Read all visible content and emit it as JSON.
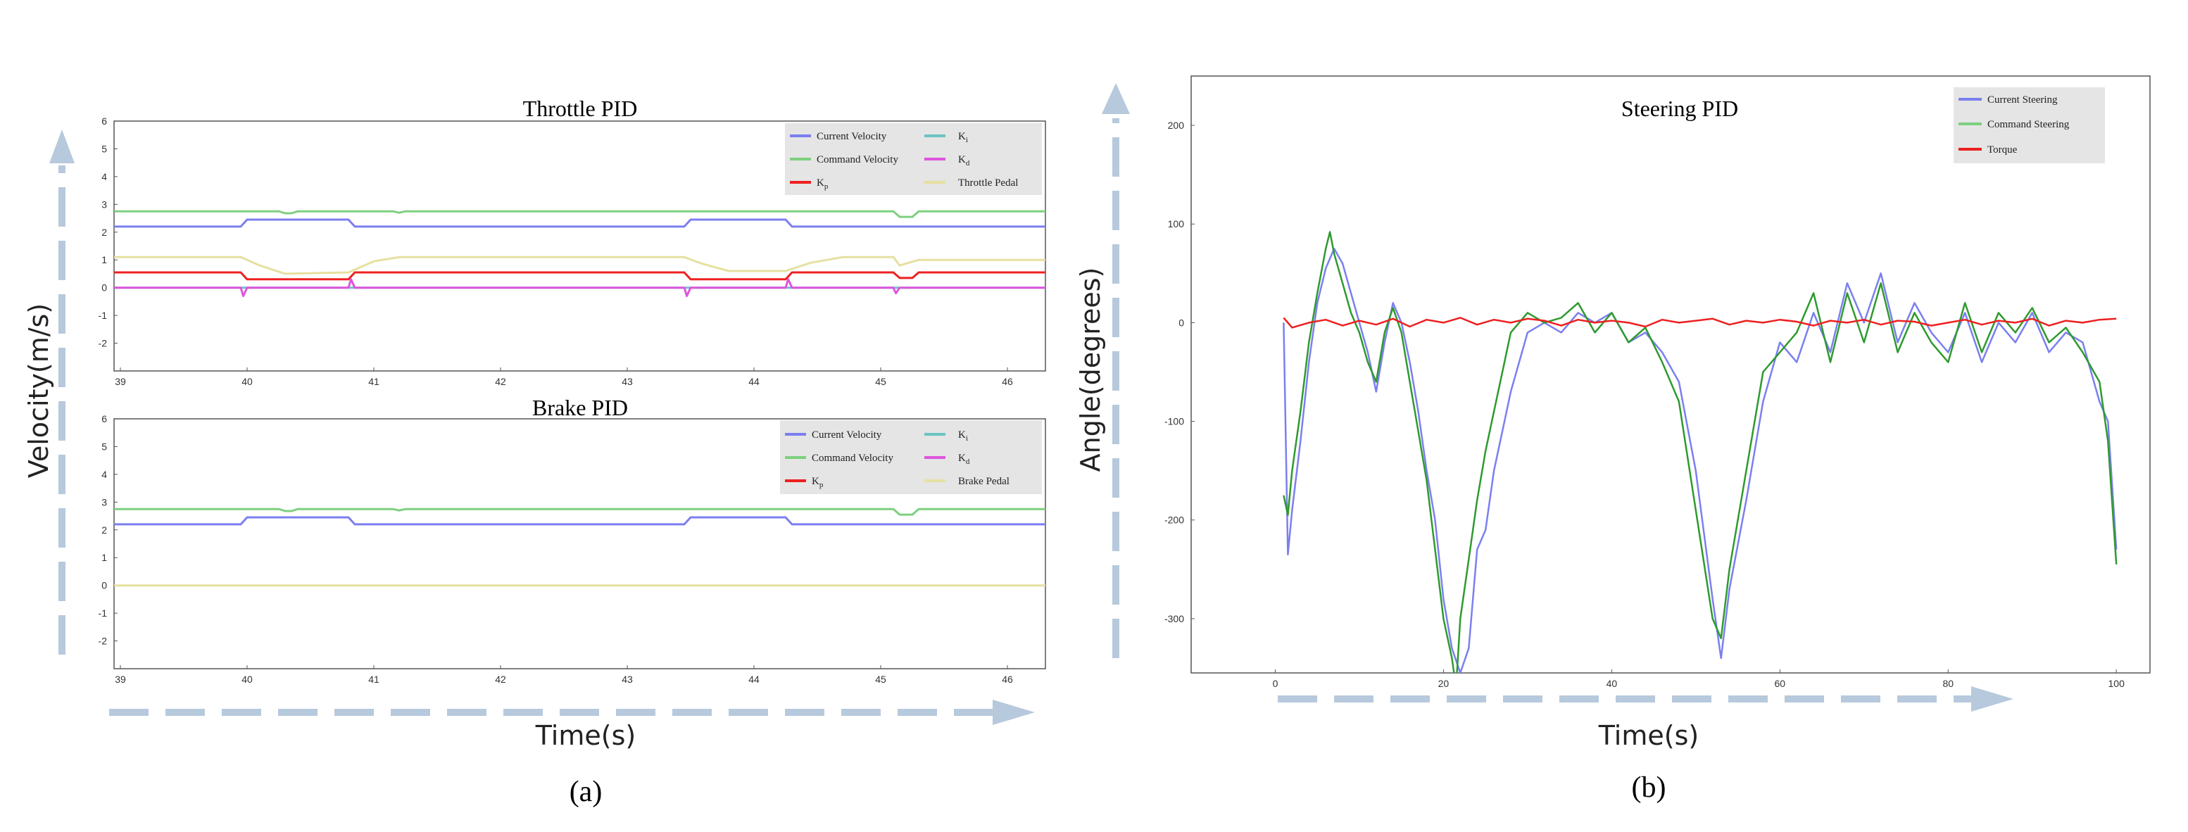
{
  "colors": {
    "current": "#7b7ff0",
    "command": "#7ed07e",
    "command_dark": "#2e9a2e",
    "kp": "#ee2020",
    "ki": "#6cc3c3",
    "kd": "#dd55dd",
    "pedal": "#e6e0a0",
    "arrow": "#b7c9dc"
  },
  "figure": {
    "panel_a": {
      "axis_label_y": "Velocity(m/s)",
      "axis_label_x": "Time(s)",
      "caption": "(a)"
    },
    "panel_b": {
      "axis_label_y": "Angle(degrees)",
      "axis_label_x": "Time(s)",
      "caption": "(b)"
    }
  },
  "chart_data": [
    {
      "id": "throttle",
      "type": "line",
      "title": "Throttle PID",
      "xlim": [
        38.95,
        46.3
      ],
      "ylim": [
        -3,
        6
      ],
      "xticks": [
        39,
        40,
        41,
        42,
        43,
        44,
        45,
        46
      ],
      "yticks": [
        -2,
        -1,
        0,
        1,
        2,
        3,
        4,
        5,
        6
      ],
      "legend": [
        "Current Velocity",
        "Command Velocity",
        "K_p",
        "K_i",
        "K_d",
        "Throttle Pedal"
      ],
      "series": [
        {
          "name": "Current Velocity",
          "color_key": "current",
          "x": [
            38.95,
            39.95,
            40.0,
            40.8,
            40.85,
            43.45,
            43.5,
            44.25,
            44.3,
            46.3
          ],
          "y": [
            2.2,
            2.2,
            2.45,
            2.45,
            2.2,
            2.2,
            2.45,
            2.45,
            2.2,
            2.2
          ]
        },
        {
          "name": "Command Velocity",
          "color_key": "command",
          "x": [
            38.95,
            40.25,
            40.3,
            40.35,
            40.4,
            41.15,
            41.2,
            41.25,
            45.1,
            45.15,
            45.25,
            45.3,
            46.3
          ],
          "y": [
            2.75,
            2.75,
            2.68,
            2.68,
            2.75,
            2.75,
            2.7,
            2.75,
            2.75,
            2.55,
            2.55,
            2.75,
            2.75
          ]
        },
        {
          "name": "K_p",
          "color_key": "kp",
          "x": [
            38.95,
            39.95,
            40.0,
            40.8,
            40.85,
            43.45,
            43.5,
            44.25,
            44.3,
            45.1,
            45.15,
            45.25,
            45.3,
            46.3
          ],
          "y": [
            0.55,
            0.55,
            0.3,
            0.3,
            0.55,
            0.55,
            0.3,
            0.3,
            0.55,
            0.55,
            0.35,
            0.35,
            0.55,
            0.55
          ]
        },
        {
          "name": "K_i",
          "color_key": "ki",
          "x": [
            38.95,
            46.3
          ],
          "y": [
            0.0,
            0.0
          ]
        },
        {
          "name": "K_d",
          "color_key": "kd",
          "x": [
            38.95,
            39.95,
            39.97,
            40.0,
            40.8,
            40.82,
            40.85,
            43.45,
            43.47,
            43.5,
            44.25,
            44.27,
            44.3,
            45.1,
            45.12,
            45.15,
            46.3
          ],
          "y": [
            0.0,
            0.0,
            -0.3,
            0.0,
            0.0,
            0.3,
            0.0,
            0.0,
            -0.3,
            0.0,
            0.0,
            0.3,
            0.0,
            0.0,
            -0.2,
            0.0,
            0.0
          ]
        },
        {
          "name": "Throttle Pedal",
          "color_key": "pedal",
          "x": [
            38.95,
            39.95,
            40.1,
            40.3,
            40.8,
            41.0,
            41.2,
            43.45,
            43.6,
            43.8,
            44.25,
            44.45,
            44.7,
            45.1,
            45.15,
            45.3,
            46.3
          ],
          "y": [
            1.1,
            1.1,
            0.8,
            0.5,
            0.55,
            0.95,
            1.1,
            1.1,
            0.85,
            0.6,
            0.6,
            0.9,
            1.1,
            1.1,
            0.8,
            1.0,
            1.0
          ]
        }
      ]
    },
    {
      "id": "brake",
      "type": "line",
      "title": "Brake PID",
      "xlim": [
        38.95,
        46.3
      ],
      "ylim": [
        -3,
        6
      ],
      "xticks": [
        39,
        40,
        41,
        42,
        43,
        44,
        45,
        46
      ],
      "yticks": [
        -2,
        -1,
        0,
        1,
        2,
        3,
        4,
        5,
        6
      ],
      "legend": [
        "Current Velocity",
        "Command Velocity",
        "K_p",
        "K_i",
        "K_d",
        "Brake Pedal"
      ],
      "series": [
        {
          "name": "Current Velocity",
          "color_key": "current",
          "x": [
            38.95,
            39.95,
            40.0,
            40.8,
            40.85,
            43.45,
            43.5,
            44.25,
            44.3,
            46.3
          ],
          "y": [
            2.2,
            2.2,
            2.45,
            2.45,
            2.2,
            2.2,
            2.45,
            2.45,
            2.2,
            2.2
          ]
        },
        {
          "name": "Command Velocity",
          "color_key": "command",
          "x": [
            38.95,
            40.25,
            40.3,
            40.35,
            40.4,
            41.15,
            41.2,
            41.25,
            45.1,
            45.15,
            45.25,
            45.3,
            46.3
          ],
          "y": [
            2.75,
            2.75,
            2.68,
            2.68,
            2.75,
            2.75,
            2.7,
            2.75,
            2.75,
            2.55,
            2.55,
            2.75,
            2.75
          ]
        },
        {
          "name": "Brake Pedal",
          "color_key": "pedal",
          "x": [
            38.95,
            46.3
          ],
          "y": [
            0.0,
            0.0
          ]
        }
      ]
    },
    {
      "id": "steering",
      "type": "line",
      "title": "Steering PID",
      "xlim": [
        -10,
        104
      ],
      "ylim": [
        -355,
        250
      ],
      "xticks": [
        0,
        20,
        40,
        60,
        80,
        100
      ],
      "yticks": [
        -300,
        -200,
        -100,
        0,
        100,
        200
      ],
      "legend": [
        "Current Steering",
        "Command Steering",
        "Torque"
      ],
      "series": [
        {
          "name": "Current Steering",
          "color_key": "current",
          "x": [
            1,
            1.5,
            2,
            3,
            4,
            5,
            6,
            7,
            8,
            9,
            10,
            11,
            12,
            13,
            14,
            15,
            16,
            17,
            18,
            19,
            20,
            21,
            22,
            23,
            24,
            25,
            26,
            27,
            28,
            30,
            32,
            34,
            36,
            38,
            40,
            42,
            44,
            46,
            48,
            50,
            52,
            53,
            54,
            56,
            58,
            60,
            62,
            64,
            66,
            68,
            70,
            72,
            74,
            76,
            78,
            80,
            82,
            84,
            86,
            88,
            90,
            92,
            94,
            96,
            98,
            99,
            100
          ],
          "y": [
            0,
            -235,
            -190,
            -120,
            -40,
            20,
            55,
            75,
            60,
            30,
            0,
            -30,
            -70,
            -20,
            20,
            0,
            -40,
            -90,
            -150,
            -200,
            -280,
            -330,
            -355,
            -330,
            -230,
            -210,
            -150,
            -110,
            -70,
            -10,
            0,
            -10,
            10,
            0,
            10,
            -20,
            -10,
            -30,
            -60,
            -150,
            -280,
            -340,
            -270,
            -180,
            -80,
            -20,
            -40,
            10,
            -30,
            40,
            0,
            50,
            -20,
            20,
            -10,
            -30,
            10,
            -40,
            0,
            -20,
            10,
            -30,
            -10,
            -20,
            -80,
            -100,
            -230
          ]
        },
        {
          "name": "Command Steering",
          "color_key": "command_dark",
          "x": [
            1,
            1.5,
            2,
            3,
            4,
            5,
            6,
            6.5,
            7,
            8,
            9,
            10,
            11,
            12,
            13,
            14,
            15,
            16,
            17,
            18,
            19,
            20,
            21,
            21.5,
            22,
            23,
            24,
            25,
            26,
            27,
            28,
            30,
            32,
            34,
            36,
            38,
            40,
            42,
            44,
            46,
            48,
            50,
            52,
            53,
            54,
            56,
            58,
            60,
            62,
            64,
            66,
            68,
            70,
            72,
            74,
            76,
            78,
            80,
            82,
            84,
            86,
            88,
            90,
            92,
            94,
            96,
            98,
            99,
            100
          ],
          "y": [
            -175,
            -195,
            -150,
            -90,
            -20,
            30,
            75,
            92,
            70,
            40,
            10,
            -10,
            -40,
            -60,
            -10,
            15,
            -10,
            -60,
            -110,
            -160,
            -230,
            -300,
            -340,
            -370,
            -300,
            -240,
            -180,
            -130,
            -90,
            -50,
            -10,
            10,
            0,
            5,
            20,
            -10,
            10,
            -20,
            -5,
            -40,
            -80,
            -190,
            -300,
            -320,
            -250,
            -150,
            -50,
            -30,
            -10,
            30,
            -40,
            30,
            -20,
            40,
            -30,
            10,
            -20,
            -40,
            20,
            -30,
            10,
            -10,
            15,
            -20,
            -5,
            -30,
            -60,
            -120,
            -245
          ]
        },
        {
          "name": "Torque",
          "color_key": "kp",
          "x": [
            1,
            2,
            4,
            6,
            8,
            10,
            12,
            14,
            16,
            18,
            20,
            22,
            24,
            26,
            28,
            30,
            32,
            34,
            36,
            38,
            40,
            42,
            44,
            46,
            48,
            50,
            52,
            54,
            56,
            58,
            60,
            62,
            64,
            66,
            68,
            70,
            72,
            74,
            76,
            78,
            80,
            82,
            84,
            86,
            88,
            90,
            92,
            94,
            96,
            98,
            100
          ],
          "y": [
            5,
            -5,
            0,
            3,
            -3,
            2,
            -2,
            4,
            -4,
            3,
            0,
            5,
            -2,
            3,
            0,
            4,
            2,
            -3,
            3,
            0,
            2,
            0,
            -4,
            3,
            0,
            2,
            4,
            -2,
            2,
            0,
            3,
            1,
            -3,
            2,
            0,
            3,
            -2,
            2,
            1,
            -3,
            0,
            3,
            -2,
            2,
            0,
            4,
            -3,
            2,
            0,
            3,
            4
          ]
        }
      ]
    }
  ]
}
